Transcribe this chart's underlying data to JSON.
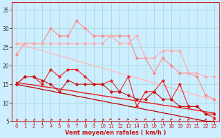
{
  "background_color": "#cceeff",
  "grid_color": "#aadddd",
  "x_label": "Vent moyen/en rafales ( km/h )",
  "x_ticks": [
    0,
    1,
    2,
    3,
    4,
    5,
    6,
    7,
    8,
    9,
    10,
    11,
    12,
    13,
    14,
    15,
    16,
    17,
    18,
    19,
    20,
    21,
    22,
    23
  ],
  "ylim": [
    5,
    37
  ],
  "yticks": [
    5,
    10,
    15,
    20,
    25,
    30,
    35
  ],
  "series": [
    {
      "name": "pink_jagged1",
      "color": "#ff8888",
      "linewidth": 0.8,
      "marker": "D",
      "markersize": 1.8,
      "zorder": 4,
      "y": [
        23,
        26,
        26,
        26,
        30,
        28,
        28,
        32,
        30,
        28,
        28,
        28,
        28,
        28,
        22,
        22,
        18,
        22,
        20,
        18,
        18,
        17,
        12,
        11
      ]
    },
    {
      "name": "pink_jagged2",
      "color": "#ffaaaa",
      "linewidth": 0.8,
      "marker": "D",
      "markersize": 1.8,
      "zorder": 4,
      "y": [
        26,
        26,
        26,
        26,
        26,
        26,
        26,
        26,
        26,
        26,
        26,
        28,
        26,
        26,
        28,
        22,
        22,
        24,
        24,
        24,
        18,
        18,
        17,
        17
      ]
    },
    {
      "name": "pink_diag_top",
      "color": "#ffbbbb",
      "linewidth": 1.0,
      "marker": null,
      "zorder": 2,
      "y": [
        26.0,
        25.3,
        24.7,
        24.0,
        23.3,
        22.7,
        22.0,
        21.3,
        20.7,
        20.0,
        19.3,
        18.7,
        18.0,
        17.3,
        16.7,
        16.0,
        15.3,
        14.7,
        14.0,
        13.3,
        12.7,
        12.0,
        11.3,
        10.7
      ]
    },
    {
      "name": "pink_diag_bottom",
      "color": "#ffcccc",
      "linewidth": 0.9,
      "marker": null,
      "zorder": 2,
      "y": [
        15.5,
        15.1,
        14.8,
        14.4,
        14.0,
        13.7,
        13.3,
        12.9,
        12.6,
        12.2,
        11.8,
        11.5,
        11.1,
        10.7,
        10.4,
        10.0,
        9.6,
        9.3,
        8.9,
        8.5,
        8.2,
        7.8,
        7.4,
        7.1
      ]
    },
    {
      "name": "red_jagged1",
      "color": "#ee2222",
      "linewidth": 0.8,
      "marker": "D",
      "markersize": 1.8,
      "zorder": 5,
      "y": [
        15,
        17,
        17,
        15,
        19,
        17,
        19,
        19,
        17,
        15,
        15,
        16,
        13,
        17,
        9,
        13,
        13,
        16,
        11,
        15,
        9,
        9,
        7,
        6
      ]
    },
    {
      "name": "red_jagged2",
      "color": "#cc1111",
      "linewidth": 0.8,
      "marker": "D",
      "markersize": 1.8,
      "zorder": 5,
      "y": [
        15,
        17,
        17,
        16,
        15,
        13,
        16,
        15,
        15,
        15,
        15,
        13,
        13,
        12,
        11,
        11,
        13,
        11,
        11,
        9,
        9,
        9,
        7,
        7
      ]
    },
    {
      "name": "red_diag1",
      "color": "#dd2222",
      "linewidth": 1.0,
      "marker": null,
      "zorder": 3,
      "y": [
        15.5,
        15.1,
        14.8,
        14.4,
        14.1,
        13.7,
        13.4,
        13.0,
        12.6,
        12.3,
        11.9,
        11.6,
        11.2,
        10.9,
        10.5,
        10.1,
        9.8,
        9.4,
        9.1,
        8.7,
        8.4,
        8.0,
        7.6,
        7.3
      ]
    },
    {
      "name": "red_diag2",
      "color": "#bb0000",
      "linewidth": 0.9,
      "marker": null,
      "zorder": 3,
      "y": [
        15.0,
        14.5,
        14.1,
        13.6,
        13.2,
        12.7,
        12.3,
        11.8,
        11.4,
        10.9,
        10.5,
        10.0,
        9.6,
        9.1,
        8.7,
        8.2,
        7.8,
        7.3,
        6.9,
        6.4,
        6.0,
        5.5,
        5.1,
        5.0
      ]
    }
  ],
  "arrow_angles": [
    45,
    45,
    45,
    45,
    45,
    45,
    45,
    45,
    45,
    45,
    45,
    60,
    60,
    70,
    70,
    80,
    90,
    90,
    90,
    90,
    90,
    90,
    90,
    90
  ],
  "arrow_color": "#cc1111",
  "font_color_x": "#cc1111",
  "font_color_y": "#333333"
}
